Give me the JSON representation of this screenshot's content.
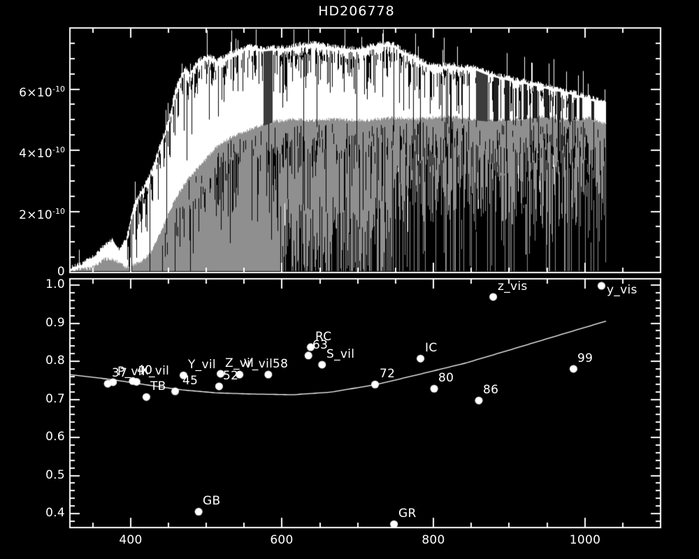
{
  "title": "HD206778",
  "colors": {
    "background": "#000000",
    "foreground": "#ffffff",
    "gray_spectrum": "#8f8f8f",
    "masked_band": "#3c3c3c",
    "absorption_gap": "#202020"
  },
  "chart_data": [
    {
      "type": "line",
      "name": "spectrum-panel",
      "title": "HD206778",
      "xlabel": "",
      "ylabel": "",
      "x_range": [
        320,
        1100
      ],
      "y_range": [
        0,
        8e-10
      ],
      "x_minor_step": 50,
      "x_major_ticks": [
        400,
        600,
        800,
        1000
      ],
      "y_minor_step": 5e-11,
      "y_ticks": [
        {
          "value": 0,
          "mantissa": "0"
        },
        {
          "value": 2e-10,
          "mantissa": "2×10",
          "exponent": "-10"
        },
        {
          "value": 4e-10,
          "mantissa": "4×10",
          "exponent": "-10"
        },
        {
          "value": 6e-10,
          "mantissa": "6×10",
          "exponent": "-10"
        }
      ],
      "flux_unit_scale": 1e-10,
      "series": [
        {
          "name": "spectrum-white",
          "color": "#ffffff",
          "envelope": [
            [
              320,
              0.09
            ],
            [
              338,
              0.27
            ],
            [
              352,
              0.5
            ],
            [
              366,
              0.87
            ],
            [
              375,
              1.01
            ],
            [
              384,
              0.69
            ],
            [
              394,
              1.03
            ],
            [
              403,
              2.06
            ],
            [
              412,
              2.56
            ],
            [
              421,
              2.93
            ],
            [
              430,
              3.43
            ],
            [
              440,
              4.23
            ],
            [
              449,
              4.85
            ],
            [
              458,
              5.83
            ],
            [
              465,
              6.35
            ],
            [
              472,
              6.63
            ],
            [
              478,
              6.45
            ],
            [
              486,
              6.81
            ],
            [
              495,
              6.97
            ],
            [
              504,
              7.04
            ],
            [
              513,
              6.9
            ],
            [
              523,
              6.99
            ],
            [
              532,
              7.13
            ],
            [
              546,
              7.27
            ],
            [
              559,
              7.36
            ],
            [
              573,
              7.27
            ],
            [
              589,
              7.31
            ],
            [
              605,
              7.31
            ],
            [
              624,
              7.41
            ],
            [
              642,
              7.45
            ],
            [
              661,
              7.36
            ],
            [
              679,
              7.31
            ],
            [
              697,
              7.27
            ],
            [
              716,
              7.36
            ],
            [
              734,
              7.45
            ],
            [
              748,
              7.41
            ],
            [
              762,
              7.18
            ],
            [
              780,
              6.95
            ],
            [
              794,
              6.77
            ],
            [
              808,
              6.72
            ],
            [
              826,
              6.77
            ],
            [
              840,
              6.67
            ],
            [
              854,
              6.67
            ],
            [
              872,
              6.49
            ],
            [
              886,
              6.4
            ],
            [
              900,
              6.31
            ],
            [
              918,
              6.22
            ],
            [
              937,
              6.13
            ],
            [
              955,
              6.01
            ],
            [
              974,
              5.92
            ],
            [
              992,
              5.78
            ],
            [
              1010,
              5.65
            ],
            [
              1027,
              5.49
            ]
          ]
        },
        {
          "name": "spectrum-gray",
          "color": "#8f8f8f",
          "envelope": [
            [
              320,
              0.07
            ],
            [
              348,
              0.16
            ],
            [
              366,
              0.46
            ],
            [
              380,
              0.41
            ],
            [
              394,
              0.18
            ],
            [
              412,
              0.34
            ],
            [
              426,
              0.64
            ],
            [
              440,
              1.37
            ],
            [
              458,
              2.4
            ],
            [
              476,
              3.09
            ],
            [
              495,
              3.61
            ],
            [
              513,
              4.11
            ],
            [
              532,
              4.43
            ],
            [
              550,
              4.62
            ],
            [
              569,
              4.8
            ],
            [
              587,
              4.94
            ],
            [
              615,
              5.03
            ],
            [
              642,
              4.98
            ],
            [
              670,
              5.03
            ],
            [
              707,
              4.98
            ],
            [
              743,
              5.07
            ],
            [
              780,
              5.03
            ],
            [
              817,
              5.12
            ],
            [
              854,
              5.03
            ],
            [
              872,
              4.98
            ],
            [
              909,
              5.03
            ],
            [
              946,
              5.12
            ],
            [
              983,
              4.98
            ],
            [
              1006,
              5.07
            ],
            [
              1027,
              4.85
            ]
          ]
        }
      ],
      "spectrum_end": 1027,
      "masked_bands": [
        {
          "start": 576,
          "end": 587
        },
        {
          "start": 856,
          "end": 871
        }
      ],
      "narrow_gaps": [
        {
          "center": 882,
          "width": 5
        },
        {
          "center": 897,
          "width": 6
        },
        {
          "center": 921,
          "width": 4
        },
        {
          "center": 934,
          "width": 4
        },
        {
          "center": 949,
          "width": 4
        },
        {
          "center": 965,
          "width": 4
        },
        {
          "center": 980,
          "width": 4
        },
        {
          "center": 994,
          "width": 3
        },
        {
          "center": 1010,
          "width": 3
        }
      ]
    },
    {
      "type": "scatter",
      "name": "photometry-panel",
      "xlabel": "",
      "ylabel": "",
      "x_range": [
        320,
        1100
      ],
      "y_range": [
        0.363,
        1.017
      ],
      "x_minor_step": 50,
      "y_minor_step": 0.02,
      "x_ticks": [
        {
          "value": 400,
          "label": "400"
        },
        {
          "value": 600,
          "label": "600"
        },
        {
          "value": 800,
          "label": "800"
        },
        {
          "value": 1000,
          "label": "1000"
        }
      ],
      "y_ticks": [
        {
          "value": 0.4,
          "label": "0.4"
        },
        {
          "value": 0.5,
          "label": "0.5"
        },
        {
          "value": 0.6,
          "label": "0.6"
        },
        {
          "value": 0.7,
          "label": "0.7"
        },
        {
          "value": 0.8,
          "label": "0.8"
        },
        {
          "value": 0.9,
          "label": "0.9"
        },
        {
          "value": 1.0,
          "label": "1.0"
        }
      ],
      "points": [
        {
          "label": "37",
          "wavelength": 370,
          "value": 0.741
        },
        {
          "label": "P_vil",
          "wavelength": 377,
          "value": 0.745
        },
        {
          "label": "40",
          "wavelength": 403,
          "value": 0.748
        },
        {
          "label": "X_vil",
          "wavelength": 408,
          "value": 0.746
        },
        {
          "label": "TB",
          "wavelength": 421,
          "value": 0.706
        },
        {
          "label": "45",
          "wavelength": 459,
          "value": 0.721,
          "dx": 10
        },
        {
          "label": "Y_vil",
          "wavelength": 470,
          "value": 0.763
        },
        {
          "label": "GB",
          "wavelength": 490,
          "value": 0.405
        },
        {
          "label": "52",
          "wavelength": 517,
          "value": 0.734
        },
        {
          "label": "Z_vil",
          "wavelength": 519,
          "value": 0.767
        },
        {
          "label": "V_vil",
          "wavelength": 544,
          "value": 0.765
        },
        {
          "label": "58",
          "wavelength": 582,
          "value": 0.765
        },
        {
          "label": "63",
          "wavelength": 635,
          "value": 0.815
        },
        {
          "label": "RC",
          "wavelength": 638,
          "value": 0.837
        },
        {
          "label": "S_vil",
          "wavelength": 653,
          "value": 0.791
        },
        {
          "label": "72",
          "wavelength": 723,
          "value": 0.739
        },
        {
          "label": "GR",
          "wavelength": 748,
          "value": 0.372
        },
        {
          "label": "IC",
          "wavelength": 783,
          "value": 0.807
        },
        {
          "label": "80",
          "wavelength": 801,
          "value": 0.728
        },
        {
          "label": "86",
          "wavelength": 860,
          "value": 0.697
        },
        {
          "label": "z_vis",
          "wavelength": 879,
          "value": 0.969
        },
        {
          "label": "99",
          "wavelength": 985,
          "value": 0.78
        },
        {
          "label": "y_vis",
          "wavelength": 1022,
          "value": 0.998,
          "dx": 7,
          "dy": -4
        }
      ],
      "fit_curve": [
        [
          320,
          0.765
        ],
        [
          375,
          0.752
        ],
        [
          421,
          0.738
        ],
        [
          467,
          0.725
        ],
        [
          513,
          0.717
        ],
        [
          559,
          0.714
        ],
        [
          615,
          0.712
        ],
        [
          665,
          0.719
        ],
        [
          725,
          0.739
        ],
        [
          780,
          0.765
        ],
        [
          842,
          0.795
        ],
        [
          903,
          0.831
        ],
        [
          965,
          0.868
        ],
        [
          1029,
          0.906
        ]
      ]
    }
  ]
}
